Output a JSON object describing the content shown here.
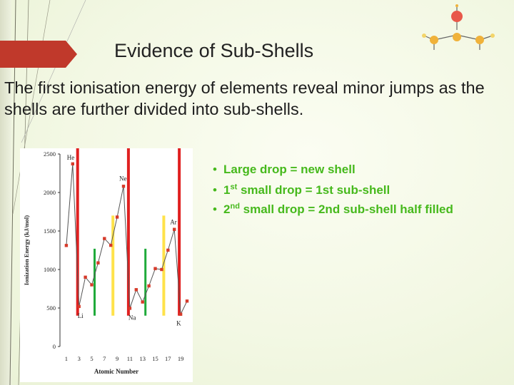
{
  "slide": {
    "title": "Evidence of Sub-Shells",
    "intro": "The first ionisation energy of elements reveal minor jumps as the shells are further divided into sub-shells."
  },
  "bullets": [
    {
      "pre": "Large drop = new shell",
      "sup": "",
      "post": ""
    },
    {
      "pre": "1",
      "sup": "st",
      "post": " small drop = 1st sub-shell"
    },
    {
      "pre": "2",
      "sup": "nd",
      "post": " small drop = 2nd sub-shell half filled"
    }
  ],
  "colors": {
    "accent_arrow": "#c0392b",
    "bullet_text": "#46b91c",
    "marker_red": "#e02020",
    "marker_green": "#1faa3a",
    "marker_yellow": "#ffe24a",
    "data_point": "#d63a2a"
  },
  "chart_data": {
    "type": "line",
    "xlabel": "Atomic Number",
    "ylabel": "Ionization Energy (kJ/mol)",
    "x_ticks": [
      "1",
      "3",
      "5",
      "7",
      "9",
      "11",
      "13",
      "15",
      "17",
      "19"
    ],
    "y_ticks": [
      "0",
      "500",
      "1000",
      "1500",
      "2000",
      "2500"
    ],
    "xlim": [
      0,
      20
    ],
    "ylim": [
      0,
      2500
    ],
    "x": [
      1,
      2,
      3,
      4,
      5,
      6,
      7,
      8,
      9,
      10,
      11,
      12,
      13,
      14,
      15,
      16,
      17,
      18,
      19,
      20
    ],
    "y": [
      1312,
      2372,
      520,
      900,
      801,
      1086,
      1402,
      1314,
      1681,
      2081,
      496,
      738,
      578,
      787,
      1012,
      1000,
      1251,
      1521,
      419,
      590
    ],
    "point_labels": [
      {
        "text": "He",
        "x": 2,
        "y": 2372
      },
      {
        "text": "Ne",
        "x": 10,
        "y": 2081
      },
      {
        "text": "Ar",
        "x": 18,
        "y": 1521
      },
      {
        "text": "Li",
        "x": 3,
        "y": 520
      },
      {
        "text": "Na",
        "x": 11,
        "y": 496
      },
      {
        "text": "K",
        "x": 19,
        "y": 419
      }
    ],
    "markers": {
      "red": [
        3,
        11,
        19
      ],
      "green": [
        5,
        13
      ],
      "yellow": [
        8,
        16
      ]
    }
  }
}
